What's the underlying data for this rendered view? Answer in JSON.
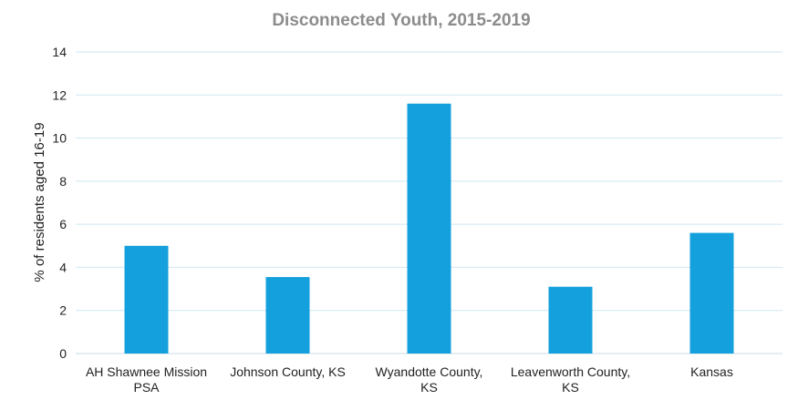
{
  "chart_data": {
    "type": "bar",
    "title": "Disconnected Youth, 2015-2019",
    "ylabel": "% of residents aged 16-19",
    "xlabel": "",
    "categories": [
      [
        "AH Shawnee Mission",
        "PSA"
      ],
      [
        "Johnson County, KS"
      ],
      [
        "Wyandotte County,",
        "KS"
      ],
      [
        "Leavenworth County,",
        "KS"
      ],
      [
        "Kansas"
      ]
    ],
    "values": [
      5.0,
      3.55,
      11.6,
      3.1,
      5.6
    ],
    "ylim": [
      0,
      14
    ],
    "yticks": [
      0,
      2,
      4,
      6,
      8,
      10,
      12,
      14
    ],
    "grid": true,
    "legend": "none",
    "colors": {
      "bar": "#14a0dc",
      "grid": "#cfe6f3",
      "axis": "#c7dbe6",
      "title": "#8c8c8c",
      "text": "#222222"
    }
  }
}
